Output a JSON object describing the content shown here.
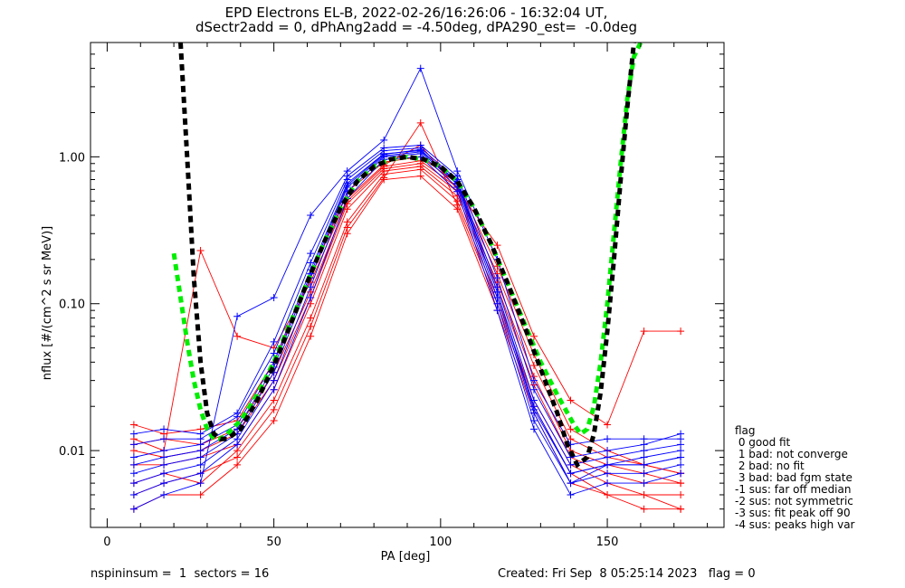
{
  "title_line1": "EPD Electrons EL-B, 2022-02-26/16:26:06 - 16:32:04 UT,",
  "title_line2": "dSectr2add = 0, dPhAng2add = -4.50deg, dPA290_est=  -0.0deg",
  "footer_left": "nspininsum =  1  sectors = 16",
  "footer_right": "Created: Fri Sep  8 05:25:14 2023   flag = 0",
  "legend": {
    "title": "flag",
    "items": [
      " 0 good fit",
      " 1 bad: not converge",
      " 2 bad: no fit",
      " 3 bad: bad fgm state",
      "-1 sus: far off median",
      "-2 sus: not symmetric",
      "-3 sus: fit peak off 90",
      "-4 sus: peaks high var"
    ]
  },
  "colors": {
    "series_a": "#ff0000",
    "series_b": "#0000ff",
    "fit_green": "#00ee00",
    "fit_black": "#000000"
  },
  "chart_data": {
    "type": "line",
    "xlabel": "PA [deg]",
    "ylabel": "nflux [#/(cm^2 s sr MeV)]",
    "xlim": [
      -5,
      185
    ],
    "ylim": [
      0.003,
      6.0
    ],
    "yscale": "log",
    "xticks": [
      0,
      50,
      100,
      150
    ],
    "xtick_labels": [
      "0",
      "50",
      "100",
      "150"
    ],
    "yticks": [
      0.01,
      0.1,
      1.0
    ],
    "ytick_labels": [
      "0.01",
      "0.10",
      "1.00"
    ],
    "pa_bins": [
      8,
      17,
      28,
      39,
      50,
      61,
      72,
      83,
      94,
      105,
      117,
      128,
      139,
      150,
      161,
      172
    ],
    "series": [
      {
        "color": "red",
        "y": [
          0.01,
          0.009,
          0.01,
          0.013,
          0.03,
          0.11,
          0.48,
          0.83,
          0.9,
          0.58,
          0.14,
          0.032,
          0.01,
          0.008,
          0.007,
          0.006
        ]
      },
      {
        "color": "red",
        "y": [
          0.006,
          0.007,
          0.006,
          0.01,
          0.022,
          0.08,
          0.36,
          0.76,
          0.82,
          0.5,
          0.11,
          0.022,
          0.008,
          0.006,
          0.005,
          0.005
        ]
      },
      {
        "color": "red",
        "y": [
          0.015,
          0.013,
          0.014,
          0.016,
          0.04,
          0.15,
          0.58,
          0.92,
          1.0,
          0.66,
          0.18,
          0.045,
          0.014,
          0.01,
          0.008,
          0.007
        ]
      },
      {
        "color": "red",
        "y": [
          0.004,
          0.005,
          0.005,
          0.008,
          0.016,
          0.06,
          0.3,
          0.7,
          0.74,
          0.44,
          0.09,
          0.018,
          0.006,
          0.005,
          0.004,
          0.004
        ]
      },
      {
        "color": "red",
        "y": [
          0.012,
          0.01,
          0.23,
          0.06,
          0.05,
          0.14,
          0.52,
          0.88,
          1.2,
          0.6,
          0.25,
          0.06,
          0.022,
          0.015,
          0.065,
          0.065
        ]
      },
      {
        "color": "red",
        "y": [
          0.008,
          0.008,
          0.009,
          0.011,
          0.026,
          0.1,
          0.44,
          0.8,
          0.86,
          0.54,
          0.13,
          0.028,
          0.009,
          0.007,
          0.006,
          0.006
        ]
      },
      {
        "color": "red",
        "y": [
          0.005,
          0.006,
          0.007,
          0.009,
          0.019,
          0.07,
          0.33,
          0.72,
          1.7,
          0.47,
          0.1,
          0.02,
          0.007,
          0.005,
          0.005,
          0.004
        ]
      },
      {
        "color": "red",
        "y": [
          0.011,
          0.012,
          0.011,
          0.014,
          0.034,
          0.12,
          0.5,
          0.86,
          0.94,
          0.62,
          0.16,
          0.038,
          0.012,
          0.009,
          0.008,
          0.007
        ]
      },
      {
        "color": "blue",
        "y": [
          0.009,
          0.01,
          0.011,
          0.015,
          0.04,
          0.17,
          0.66,
          1.05,
          1.1,
          0.68,
          0.12,
          0.02,
          0.007,
          0.008,
          0.009,
          0.01
        ]
      },
      {
        "color": "blue",
        "y": [
          0.006,
          0.007,
          0.008,
          0.012,
          0.03,
          0.13,
          0.58,
          1.0,
          1.05,
          0.62,
          0.1,
          0.016,
          0.006,
          0.007,
          0.007,
          0.008
        ]
      },
      {
        "color": "blue",
        "y": [
          0.013,
          0.014,
          0.013,
          0.018,
          0.055,
          0.22,
          0.74,
          1.15,
          1.2,
          0.74,
          0.15,
          0.026,
          0.009,
          0.01,
          0.011,
          0.013
        ]
      },
      {
        "color": "blue",
        "y": [
          0.004,
          0.005,
          0.006,
          0.082,
          0.11,
          0.4,
          0.8,
          1.3,
          4.0,
          0.8,
          0.2,
          0.03,
          0.011,
          0.012,
          0.012,
          0.012
        ]
      },
      {
        "color": "blue",
        "y": [
          0.007,
          0.008,
          0.009,
          0.013,
          0.034,
          0.15,
          0.62,
          1.02,
          1.08,
          0.65,
          0.11,
          0.018,
          0.006,
          0.008,
          0.008,
          0.009
        ]
      },
      {
        "color": "blue",
        "y": [
          0.011,
          0.012,
          0.012,
          0.017,
          0.046,
          0.19,
          0.7,
          1.1,
          1.15,
          0.7,
          0.13,
          0.022,
          0.008,
          0.009,
          0.01,
          0.011
        ]
      },
      {
        "color": "blue",
        "y": [
          0.005,
          0.006,
          0.007,
          0.011,
          0.026,
          0.11,
          0.52,
          0.96,
          1.0,
          0.58,
          0.09,
          0.014,
          0.005,
          0.006,
          0.006,
          0.007
        ]
      },
      {
        "color": "blue",
        "y": [
          0.008,
          0.009,
          0.01,
          0.014,
          0.037,
          0.16,
          0.64,
          1.04,
          1.12,
          0.66,
          0.12,
          0.019,
          0.007,
          0.008,
          0.008,
          0.009
        ]
      }
    ],
    "fit_green": {
      "x": [
        20,
        22,
        24,
        26,
        28,
        30,
        32,
        34,
        36,
        40,
        45,
        50,
        55,
        60,
        65,
        70,
        75,
        80,
        85,
        90,
        95,
        100,
        105,
        110,
        115,
        120,
        125,
        130,
        135,
        140,
        142,
        144,
        146,
        148,
        150,
        152,
        154,
        156,
        158,
        160
      ],
      "y": [
        0.22,
        0.11,
        0.055,
        0.03,
        0.019,
        0.014,
        0.012,
        0.012,
        0.013,
        0.016,
        0.024,
        0.04,
        0.075,
        0.14,
        0.26,
        0.45,
        0.68,
        0.86,
        0.96,
        1.0,
        0.96,
        0.86,
        0.68,
        0.45,
        0.26,
        0.14,
        0.075,
        0.04,
        0.024,
        0.015,
        0.013,
        0.014,
        0.02,
        0.04,
        0.1,
        0.3,
        0.9,
        2.5,
        4.8,
        6.0
      ]
    },
    "fit_black": {
      "x": [
        22,
        24,
        26,
        28,
        30,
        32,
        34,
        36,
        40,
        45,
        50,
        55,
        60,
        65,
        70,
        75,
        80,
        85,
        90,
        95,
        100,
        105,
        110,
        115,
        120,
        125,
        130,
        135,
        138,
        141,
        144,
        146,
        148,
        150,
        152,
        154,
        156,
        158
      ],
      "y": [
        6.0,
        1.0,
        0.15,
        0.04,
        0.018,
        0.013,
        0.012,
        0.012,
        0.014,
        0.022,
        0.038,
        0.072,
        0.14,
        0.26,
        0.45,
        0.68,
        0.86,
        0.96,
        1.0,
        0.96,
        0.86,
        0.68,
        0.45,
        0.26,
        0.14,
        0.072,
        0.036,
        0.018,
        0.011,
        0.008,
        0.009,
        0.013,
        0.025,
        0.065,
        0.2,
        0.7,
        2.2,
        6.0
      ]
    }
  }
}
